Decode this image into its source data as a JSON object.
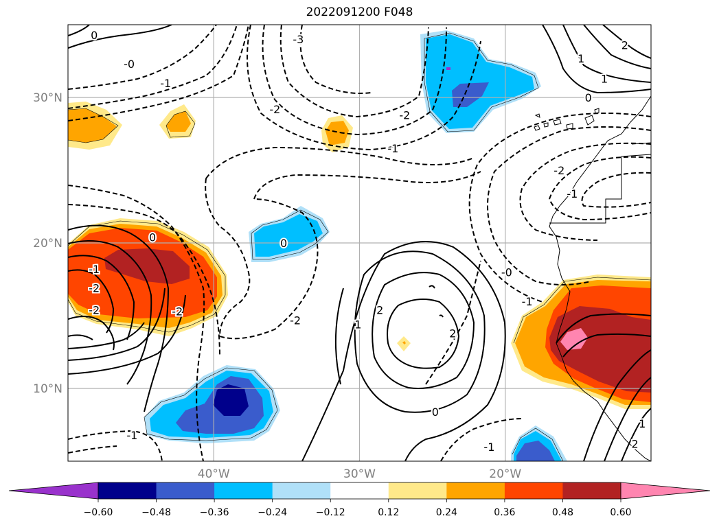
{
  "title": "2022091200 F048",
  "map": {
    "projection": "Plate Carree",
    "lon_range": [
      -50,
      -10
    ],
    "lat_range": [
      5,
      35
    ],
    "lat_gridlines": [
      {
        "value": 30,
        "label": "30°N"
      },
      {
        "value": 20,
        "label": "20°N"
      },
      {
        "value": 10,
        "label": "10°N"
      }
    ],
    "lon_gridlines": [
      {
        "value": -40,
        "label": "40°W"
      },
      {
        "value": -30,
        "label": "30°W"
      },
      {
        "value": -20,
        "label": "20°W"
      }
    ],
    "grid": true,
    "coastline_color": "#000000"
  },
  "colorbar": {
    "orientation": "horizontal",
    "extend": "both",
    "levels": [
      -0.72,
      -0.6,
      -0.48,
      -0.36,
      -0.24,
      -0.12,
      0.12,
      0.24,
      0.36,
      0.48,
      0.6,
      0.72
    ],
    "colors": [
      "#9932cc",
      "#00008b",
      "#3a5ccc",
      "#00bfff",
      "#b0e0f8",
      "#ffffff",
      "#ffe98a",
      "#ffa500",
      "#ff4500",
      "#b22222",
      "#ff85b0"
    ],
    "tick_labels": [
      "−0.60",
      "−0.48",
      "−0.36",
      "−0.24",
      "−0.12",
      "0.12",
      "0.24",
      "0.36",
      "0.48",
      "0.60"
    ]
  },
  "contours": {
    "style": "solid positive, dashed negative",
    "color": "#000000",
    "labels": [
      {
        "text": "0",
        "lon": -48.2,
        "lat": 34.3
      },
      {
        "text": "-0",
        "lon": -45.8,
        "lat": 32.3
      },
      {
        "text": "-1",
        "lon": -43.3,
        "lat": 31.0
      },
      {
        "text": "-3",
        "lon": -34.2,
        "lat": 34.0
      },
      {
        "text": "-2",
        "lon": -35.8,
        "lat": 29.2
      },
      {
        "text": "-2",
        "lon": -26.9,
        "lat": 28.8
      },
      {
        "text": "-1",
        "lon": -27.7,
        "lat": 26.5
      },
      {
        "text": "1",
        "lon": -14.8,
        "lat": 32.7
      },
      {
        "text": "2",
        "lon": -11.8,
        "lat": 33.6
      },
      {
        "text": "1",
        "lon": -13.2,
        "lat": 31.3
      },
      {
        "text": "0",
        "lon": -14.3,
        "lat": 30.0
      },
      {
        "text": "-2",
        "lon": -16.3,
        "lat": 25.0
      },
      {
        "text": "-1",
        "lon": -15.4,
        "lat": 23.4
      },
      {
        "text": "0",
        "lon": -44.2,
        "lat": 20.4
      },
      {
        "text": "-1",
        "lon": -48.2,
        "lat": 18.2
      },
      {
        "text": "-2",
        "lon": -48.2,
        "lat": 16.9
      },
      {
        "text": "-2",
        "lon": -48.2,
        "lat": 15.4
      },
      {
        "text": "0",
        "lon": -35.2,
        "lat": 20.0
      },
      {
        "text": "-2",
        "lon": -42.5,
        "lat": 15.3
      },
      {
        "text": "-2",
        "lon": -34.4,
        "lat": 14.7
      },
      {
        "text": "1",
        "lon": -30.1,
        "lat": 14.4
      },
      {
        "text": "2",
        "lon": -28.6,
        "lat": 15.4
      },
      {
        "text": "2",
        "lon": -23.6,
        "lat": 13.8
      },
      {
        "text": "0",
        "lon": -24.8,
        "lat": 8.4
      },
      {
        "text": "-0",
        "lon": -19.9,
        "lat": 18.0
      },
      {
        "text": "-1",
        "lon": -18.5,
        "lat": 16.0
      },
      {
        "text": "-1",
        "lon": -45.6,
        "lat": 6.8
      },
      {
        "text": "-1",
        "lon": -21.1,
        "lat": 6.0
      },
      {
        "text": "1",
        "lon": -10.6,
        "lat": 7.6
      },
      {
        "text": "2",
        "lon": -11.1,
        "lat": 6.2
      }
    ]
  }
}
